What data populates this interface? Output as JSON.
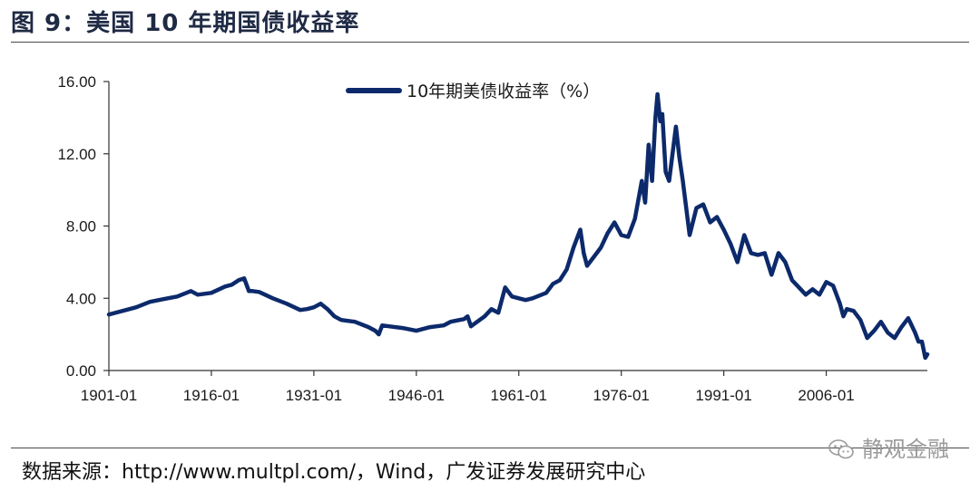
{
  "header": {
    "title": "图 9：美国 10 年期国债收益率"
  },
  "footer": {
    "source": "数据来源：http://www.multpl.com/，Wind，广发证券发展研究中心",
    "watermark": "静观金融"
  },
  "colors": {
    "line": "#0c2a6b",
    "axis": "#333333",
    "title": "#1f2a44"
  },
  "chart_data": {
    "type": "line",
    "title": "",
    "xlabel": "",
    "ylabel": "",
    "ylim": [
      0,
      16
    ],
    "xlim": [
      1901.0,
      2020.8
    ],
    "yticks": [
      "0.00",
      "4.00",
      "8.00",
      "12.00",
      "16.00"
    ],
    "ytick_values": [
      0,
      4,
      8,
      12,
      16
    ],
    "xticks": [
      "1901-01",
      "1916-01",
      "1931-01",
      "1946-01",
      "1961-01",
      "1976-01",
      "1991-01",
      "2006-01"
    ],
    "xtick_values": [
      1901,
      1916,
      1931,
      1946,
      1961,
      1976,
      1991,
      2006
    ],
    "legend_position": "top-center",
    "grid": false,
    "series": [
      {
        "name": "10年期美债收益率（%）",
        "x": [
          1901,
          1903,
          1905,
          1907,
          1909,
          1911,
          1913,
          1914,
          1916,
          1918,
          1919,
          1920,
          1920.8,
          1921.5,
          1922,
          1923,
          1925,
          1927,
          1929,
          1930,
          1931,
          1932,
          1933,
          1934,
          1935,
          1937,
          1939,
          1940,
          1940.5,
          1941,
          1942,
          1944,
          1946,
          1948,
          1950,
          1951,
          1953,
          1953.5,
          1954,
          1956,
          1957,
          1958,
          1959,
          1960,
          1961,
          1962,
          1963,
          1965,
          1966,
          1967,
          1968,
          1969,
          1970,
          1970.5,
          1971,
          1972,
          1973,
          1974,
          1975,
          1976,
          1977,
          1978,
          1979,
          1979.5,
          1980,
          1980.5,
          1981,
          1981.3,
          1981.7,
          1982,
          1982.5,
          1983,
          1984,
          1984.5,
          1985,
          1986,
          1987,
          1988,
          1989,
          1990,
          1991,
          1992,
          1993,
          1994,
          1995,
          1996,
          1997,
          1998,
          1999,
          2000,
          2001,
          2002,
          2003,
          2004,
          2005,
          2006,
          2007,
          2008,
          2008.5,
          2009,
          2010,
          2011,
          2012,
          2013,
          2014,
          2015,
          2016,
          2017,
          2018,
          2019,
          2019.5,
          2020,
          2020.5,
          2020.8
        ],
        "values": [
          3.1,
          3.3,
          3.5,
          3.8,
          3.95,
          4.1,
          4.4,
          4.2,
          4.3,
          4.65,
          4.75,
          5.0,
          5.1,
          4.4,
          4.4,
          4.35,
          4.0,
          3.7,
          3.35,
          3.4,
          3.5,
          3.7,
          3.4,
          3.0,
          2.8,
          2.7,
          2.4,
          2.2,
          2.0,
          2.5,
          2.45,
          2.35,
          2.2,
          2.4,
          2.5,
          2.7,
          2.85,
          3.0,
          2.45,
          3.0,
          3.4,
          3.2,
          4.6,
          4.1,
          4.0,
          3.9,
          4.0,
          4.3,
          4.8,
          5.0,
          5.6,
          6.8,
          7.8,
          6.5,
          5.8,
          6.3,
          6.8,
          7.6,
          8.2,
          7.5,
          7.4,
          8.4,
          10.5,
          9.3,
          12.5,
          10.5,
          14.0,
          15.3,
          13.8,
          14.2,
          11.0,
          10.5,
          13.5,
          11.8,
          10.5,
          7.5,
          9.0,
          9.2,
          8.2,
          8.5,
          7.8,
          7.0,
          6.0,
          7.5,
          6.5,
          6.4,
          6.5,
          5.3,
          6.5,
          6.0,
          5.0,
          4.6,
          4.2,
          4.5,
          4.2,
          4.9,
          4.7,
          3.7,
          3.0,
          3.4,
          3.3,
          2.8,
          1.8,
          2.2,
          2.7,
          2.1,
          1.8,
          2.4,
          2.9,
          2.1,
          1.6,
          1.6,
          0.7,
          0.9
        ]
      }
    ]
  }
}
